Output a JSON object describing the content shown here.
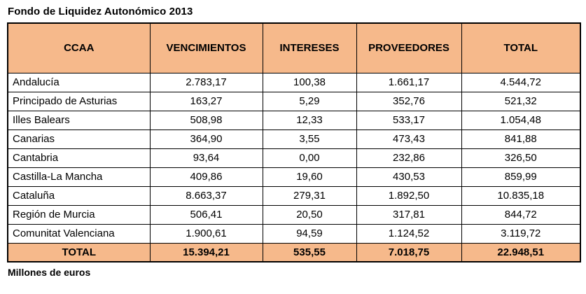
{
  "title": "Fondo de Liquidez Autonómico 2013",
  "footnote": "Millones de euros",
  "colors": {
    "header_bg": "#F6B98B",
    "border": "#000000"
  },
  "table": {
    "columns": [
      "CCAA",
      "VENCIMIENTOS",
      "INTERESES",
      "PROVEEDORES",
      "TOTAL"
    ],
    "rows": [
      {
        "ccaa": "Andalucía",
        "values": [
          "2.783,17",
          "100,38",
          "1.661,17",
          "4.544,72"
        ]
      },
      {
        "ccaa": "Principado de Asturias",
        "values": [
          "163,27",
          "5,29",
          "352,76",
          "521,32"
        ]
      },
      {
        "ccaa": "Illes Balears",
        "values": [
          "508,98",
          "12,33",
          "533,17",
          "1.054,48"
        ]
      },
      {
        "ccaa": "Canarias",
        "values": [
          "364,90",
          "3,55",
          "473,43",
          "841,88"
        ]
      },
      {
        "ccaa": "Cantabria",
        "values": [
          "93,64",
          "0,00",
          "232,86",
          "326,50"
        ]
      },
      {
        "ccaa": "Castilla-La Mancha",
        "values": [
          "409,86",
          "19,60",
          "430,53",
          "859,99"
        ]
      },
      {
        "ccaa": "Cataluña",
        "values": [
          "8.663,37",
          "279,31",
          "1.892,50",
          "10.835,18"
        ]
      },
      {
        "ccaa": "Región de Murcia",
        "values": [
          "506,41",
          "20,50",
          "317,81",
          "844,72"
        ]
      },
      {
        "ccaa": "Comunitat Valenciana",
        "values": [
          "1.900,61",
          "94,59",
          "1.124,52",
          "3.119,72"
        ]
      }
    ],
    "total_row": {
      "label": "TOTAL",
      "values": [
        "15.394,21",
        "535,55",
        "7.018,75",
        "22.948,51"
      ]
    }
  },
  "chart_data": {
    "type": "table",
    "title": "Fondo de Liquidez Autonómico 2013",
    "columns": [
      "CCAA",
      "VENCIMIENTOS",
      "INTERESES",
      "PROVEEDORES",
      "TOTAL"
    ],
    "rows": [
      [
        "Andalucía",
        2783.17,
        100.38,
        1661.17,
        4544.72
      ],
      [
        "Principado de Asturias",
        163.27,
        5.29,
        352.76,
        521.32
      ],
      [
        "Illes Balears",
        508.98,
        12.33,
        533.17,
        1054.48
      ],
      [
        "Canarias",
        364.9,
        3.55,
        473.43,
        841.88
      ],
      [
        "Cantabria",
        93.64,
        0.0,
        232.86,
        326.5
      ],
      [
        "Castilla-La Mancha",
        409.86,
        19.6,
        430.53,
        859.99
      ],
      [
        "Cataluña",
        8663.37,
        279.31,
        1892.5,
        10835.18
      ],
      [
        "Región de Murcia",
        506.41,
        20.5,
        317.81,
        844.72
      ],
      [
        "Comunitat Valenciana",
        1900.61,
        94.59,
        1124.52,
        3119.72
      ]
    ],
    "total_row": [
      "TOTAL",
      15394.21,
      535.55,
      7018.75,
      22948.51
    ],
    "units": "Millones de euros",
    "number_format": "es-ES"
  }
}
